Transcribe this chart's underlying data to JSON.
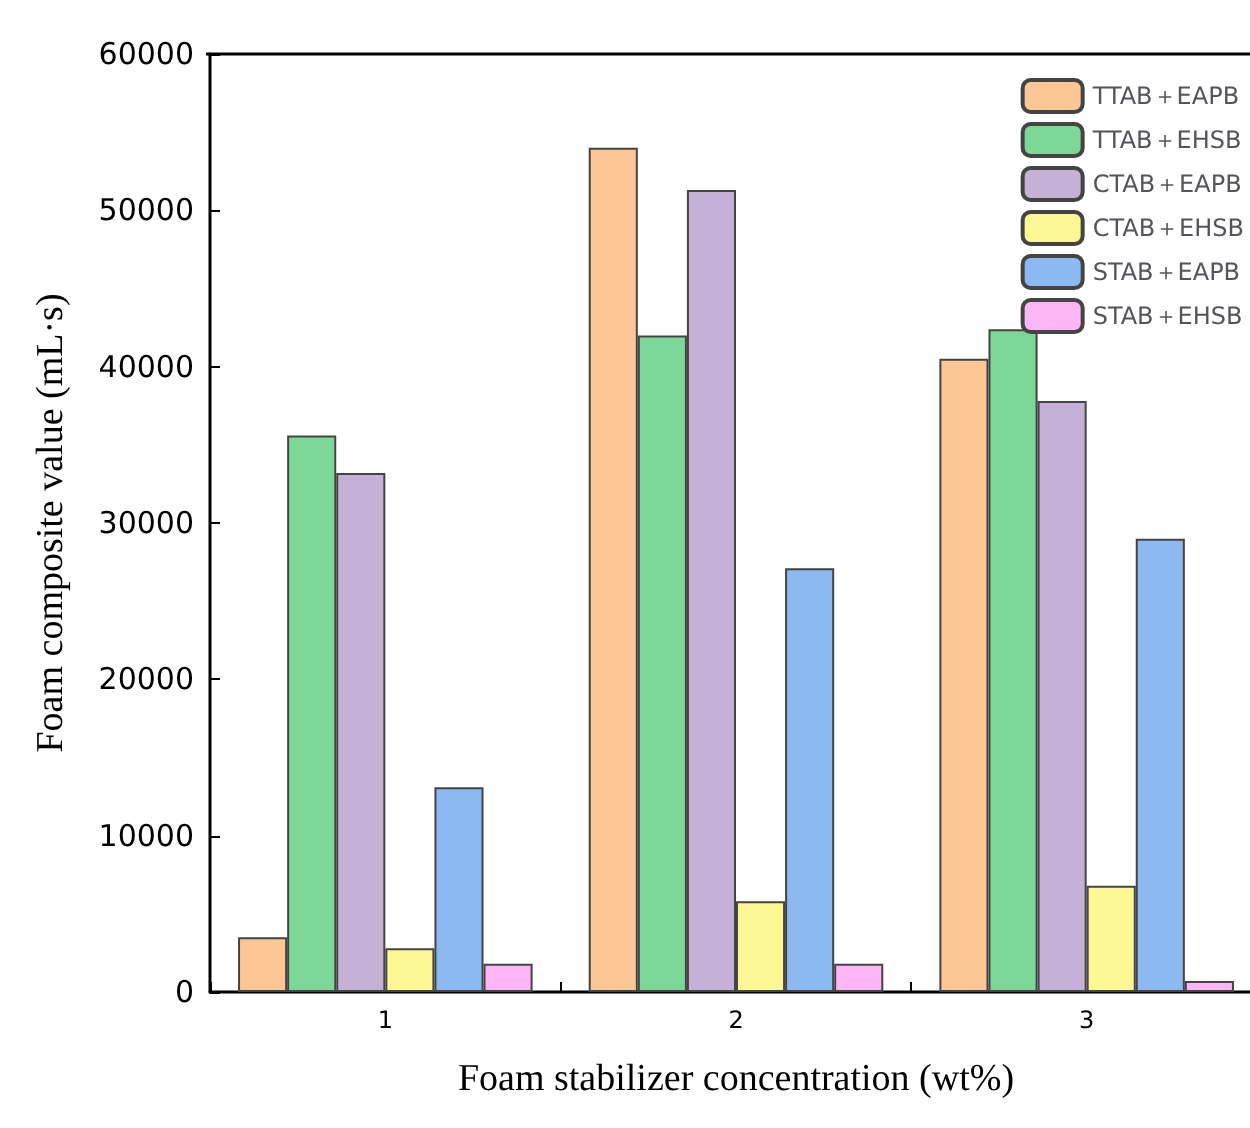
{
  "chart_data": {
    "type": "bar",
    "xlabel": "Foam stabilizer concentration (wt%)",
    "ylabel": "Foam composite value (mL·s)",
    "categories": [
      "1",
      "2",
      "3"
    ],
    "series": [
      {
        "name": "TTAB＋EAPB",
        "color": "#fdc795",
        "values": [
          3500,
          54000,
          40500
        ]
      },
      {
        "name": "TTAB＋EHSB",
        "color": "#7dd898",
        "values": [
          35600,
          42000,
          42400
        ]
      },
      {
        "name": "CTAB＋EAPB",
        "color": "#c5b0d7",
        "values": [
          33200,
          51300,
          37800
        ]
      },
      {
        "name": "CTAB＋EHSB",
        "color": "#fcf894",
        "values": [
          2800,
          5800,
          6800
        ]
      },
      {
        "name": "STAB＋EAPB",
        "color": "#8bb9f0",
        "values": [
          13100,
          27100,
          29000
        ]
      },
      {
        "name": "STAB＋EHSB",
        "color": "#fdb5f5",
        "values": [
          1800,
          1800,
          700
        ]
      }
    ],
    "ylim": [
      0,
      60000
    ],
    "yticks": [
      0,
      10000,
      20000,
      30000,
      40000,
      50000,
      60000
    ],
    "grid": false,
    "legend": "top right"
  }
}
